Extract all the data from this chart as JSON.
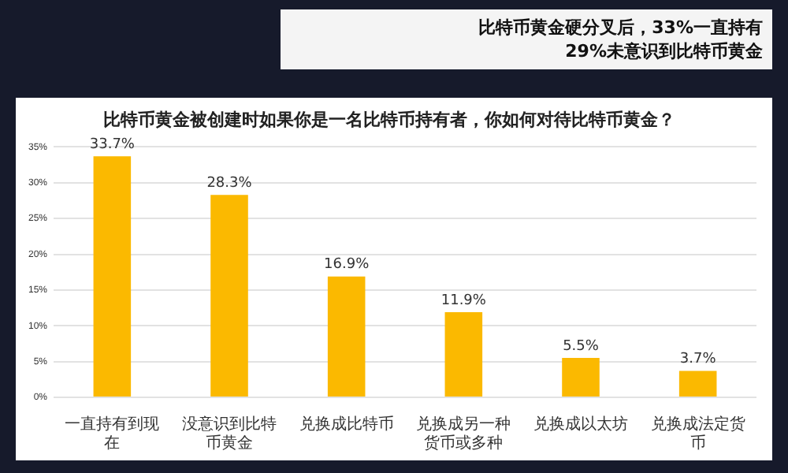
{
  "chart_data": {
    "type": "bar",
    "title": "比特币黄金被创建时如果你是一名比特币持有者，你如何对待比特币黄金？",
    "annotations": [
      "比特币黄金硬分叉后，33%一直持有",
      "29%未意识到比特币黄金"
    ],
    "categories": [
      "一直持有到现在",
      "没意识到比特币黄金",
      "兑换成比特币",
      "兑换成另一种货币或多种",
      "兑换成以太坊",
      "兑换成法定货币"
    ],
    "values": [
      33.7,
      28.3,
      16.9,
      11.9,
      5.5,
      3.7
    ],
    "value_labels": [
      "33.7%",
      "28.3%",
      "16.9%",
      "11.9%",
      "5.5%",
      "3.7%"
    ],
    "color": "#fbb900",
    "ylim": [
      0,
      35
    ],
    "yticks": [
      {
        "value": 0,
        "label": "0%"
      },
      {
        "value": 5,
        "label": "5%"
      },
      {
        "value": 10,
        "label": "10%"
      },
      {
        "value": 15,
        "label": "15%"
      },
      {
        "value": 20,
        "label": "20%"
      },
      {
        "value": 25,
        "label": "25%"
      },
      {
        "value": 30,
        "label": "30%"
      },
      {
        "value": 35,
        "label": "35%"
      }
    ],
    "grid": "y"
  }
}
